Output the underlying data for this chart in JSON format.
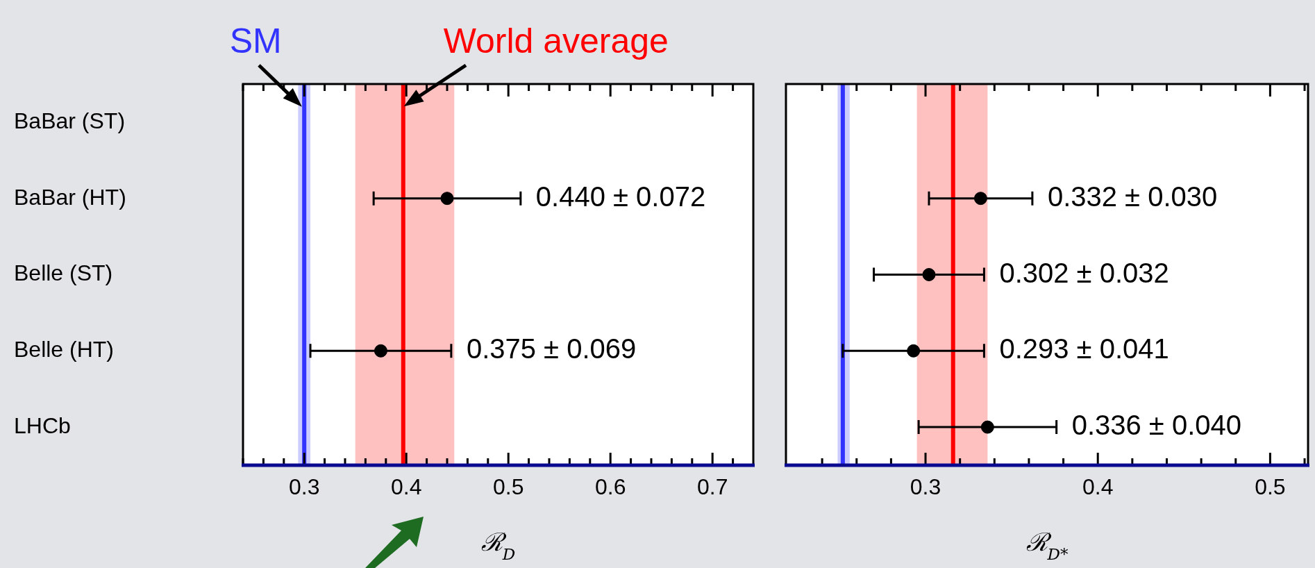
{
  "chart_data": [
    {
      "type": "scatter",
      "orientation": "horizontal",
      "marker": "circle",
      "color": "#000000",
      "xlabel": "ℛ$_{D}$",
      "categories": [
        "BaBar (ST)",
        "BaBar (HT)",
        "Belle (ST)",
        "Belle (HT)",
        "LHCb"
      ],
      "values": [
        null,
        0.44,
        null,
        0.375,
        null
      ],
      "errors": [
        null,
        0.072,
        null,
        0.069,
        null
      ],
      "value_labels": [
        null,
        "0.440 ± 0.072",
        null,
        "0.375 ± 0.069",
        null
      ],
      "xlim": [
        0.24,
        0.74
      ],
      "xticks": [
        {
          "value": 0.24,
          "label": null
        },
        {
          "value": 0.26,
          "label": null
        },
        {
          "value": 0.28,
          "label": null
        },
        0.3,
        {
          "value": 0.32,
          "label": null
        },
        {
          "value": 0.34,
          "label": null
        },
        {
          "value": 0.36,
          "label": null
        },
        {
          "value": 0.38,
          "label": null
        },
        0.4,
        {
          "value": 0.42,
          "label": null
        },
        {
          "value": 0.44,
          "label": null
        },
        {
          "value": 0.46,
          "label": null
        },
        {
          "value": 0.48,
          "label": null
        },
        0.5,
        {
          "value": 0.52,
          "label": null
        },
        {
          "value": 0.54,
          "label": null
        },
        {
          "value": 0.56,
          "label": null
        },
        {
          "value": 0.58,
          "label": null
        },
        0.6,
        {
          "value": 0.62,
          "label": null
        },
        {
          "value": 0.64,
          "label": null
        },
        {
          "value": 0.66,
          "label": null
        },
        {
          "value": 0.68,
          "label": null
        },
        0.7,
        {
          "value": 0.72,
          "label": null
        }
      ],
      "bands": [
        {
          "axis": "x",
          "from": 0.294,
          "to": 0.306,
          "color": "#ccccff"
        },
        {
          "axis": "x",
          "from": 0.35,
          "to": 0.447,
          "color": "#ffc0c0"
        }
      ],
      "ref_lines": [
        {
          "axis": "x",
          "value": 0.3,
          "label": "SM",
          "color": "#3333ff"
        },
        {
          "axis": "x",
          "value": 0.397,
          "label": "World average",
          "color": "#ff0000"
        }
      ],
      "grid": false
    },
    {
      "type": "scatter",
      "orientation": "horizontal",
      "marker": "circle",
      "color": "#000000",
      "xlabel": "ℛ$_{D*}$",
      "categories": [
        null,
        null,
        null,
        null,
        null
      ],
      "values": [
        null,
        0.332,
        0.302,
        0.293,
        0.336
      ],
      "errors": [
        null,
        0.03,
        0.032,
        0.041,
        0.04
      ],
      "value_labels": [
        null,
        "0.332 ± 0.030",
        "0.302 ± 0.032",
        "0.293 ± 0.041",
        "0.336 ± 0.040"
      ],
      "xlim": [
        0.219,
        0.522
      ],
      "xticks": [
        {
          "value": 0.24,
          "label": null
        },
        {
          "value": 0.26,
          "label": null
        },
        {
          "value": 0.28,
          "label": null
        },
        0.3,
        {
          "value": 0.32,
          "label": null
        },
        {
          "value": 0.34,
          "label": null
        },
        {
          "value": 0.36,
          "label": null
        },
        {
          "value": 0.38,
          "label": null
        },
        0.4,
        {
          "value": 0.42,
          "label": null
        },
        {
          "value": 0.44,
          "label": null
        },
        {
          "value": 0.46,
          "label": null
        },
        {
          "value": 0.48,
          "label": null
        },
        0.5,
        {
          "value": 0.52,
          "label": null
        }
      ],
      "bands": [
        {
          "axis": "x",
          "from": 0.249,
          "to": 0.256,
          "color": "#ccccff"
        },
        {
          "axis": "x",
          "from": 0.295,
          "to": 0.336,
          "color": "#ffc0c0"
        }
      ],
      "ref_lines": [
        {
          "axis": "x",
          "value": 0.252,
          "color": "#3333ff"
        },
        {
          "axis": "x",
          "value": 0.316,
          "color": "#ff0000"
        }
      ],
      "grid": false
    }
  ]
}
